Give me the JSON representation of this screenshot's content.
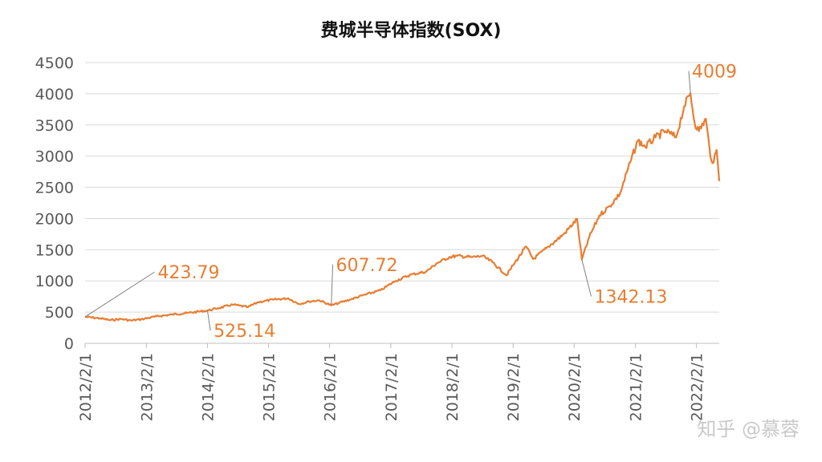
{
  "chart_data": {
    "type": "line",
    "title": "费城半导体指数(SOX)",
    "xlabel": "",
    "ylabel": "",
    "ylim": [
      0,
      4500
    ],
    "yticks": [
      0,
      500,
      1000,
      1500,
      2000,
      2500,
      3000,
      3500,
      4000,
      4500
    ],
    "xlim": [
      "2012-02-01",
      "2022-06-17"
    ],
    "xticks": [
      "2012/2/1",
      "2013/2/1",
      "2014/2/1",
      "2015/2/1",
      "2016/2/1",
      "2017/2/1",
      "2018/2/1",
      "2019/2/1",
      "2020/2/1",
      "2021/2/1",
      "2022/2/1"
    ],
    "grid": true,
    "series_color": "#E87D32",
    "series": [
      {
        "points": [
          [
            "2012-02-01",
            423.79
          ],
          [
            "2012-05-01",
            400
          ],
          [
            "2012-07-01",
            370
          ],
          [
            "2012-09-01",
            390
          ],
          [
            "2012-11-01",
            365
          ],
          [
            "2013-01-01",
            385
          ],
          [
            "2013-04-01",
            430
          ],
          [
            "2013-07-01",
            460
          ],
          [
            "2013-10-01",
            485
          ],
          [
            "2014-02-01",
            525.14
          ],
          [
            "2014-04-01",
            560
          ],
          [
            "2014-07-01",
            620
          ],
          [
            "2014-10-01",
            580
          ],
          [
            "2014-12-01",
            660
          ],
          [
            "2015-03-01",
            700
          ],
          [
            "2015-06-01",
            720
          ],
          [
            "2015-08-01",
            630
          ],
          [
            "2015-10-01",
            670
          ],
          [
            "2015-12-01",
            690
          ],
          [
            "2016-02-11",
            607.72
          ],
          [
            "2016-04-01",
            650
          ],
          [
            "2016-06-01",
            700
          ],
          [
            "2016-09-01",
            780
          ],
          [
            "2016-12-01",
            850
          ],
          [
            "2017-03-01",
            1000
          ],
          [
            "2017-06-01",
            1100
          ],
          [
            "2017-09-01",
            1150
          ],
          [
            "2017-11-01",
            1280
          ],
          [
            "2018-01-15",
            1380
          ],
          [
            "2018-03-01",
            1400
          ],
          [
            "2018-06-01",
            1380
          ],
          [
            "2018-08-01",
            1400
          ],
          [
            "2018-10-01",
            1300
          ],
          [
            "2018-12-24",
            1090
          ],
          [
            "2019-02-01",
            1250
          ],
          [
            "2019-04-20",
            1550
          ],
          [
            "2019-06-01",
            1350
          ],
          [
            "2019-09-01",
            1550
          ],
          [
            "2019-12-01",
            1750
          ],
          [
            "2020-02-19",
            1990
          ],
          [
            "2020-03-18",
            1342.13
          ],
          [
            "2020-05-01",
            1700
          ],
          [
            "2020-07-01",
            2050
          ],
          [
            "2020-09-01",
            2200
          ],
          [
            "2020-11-01",
            2400
          ],
          [
            "2021-01-01",
            2900
          ],
          [
            "2021-02-16",
            3250
          ],
          [
            "2021-04-01",
            3150
          ],
          [
            "2021-06-01",
            3300
          ],
          [
            "2021-08-01",
            3400
          ],
          [
            "2021-10-01",
            3300
          ],
          [
            "2021-11-20",
            3800
          ],
          [
            "2021-12-27",
            4009
          ],
          [
            "2022-01-20",
            3550
          ],
          [
            "2022-02-15",
            3400
          ],
          [
            "2022-03-29",
            3600
          ],
          [
            "2022-04-25",
            3000
          ],
          [
            "2022-05-15",
            2900
          ],
          [
            "2022-06-01",
            3100
          ],
          [
            "2022-06-17",
            2600
          ]
        ]
      }
    ],
    "annotations": [
      {
        "label": "423.79",
        "date": "2012-02-01",
        "value": 423.79,
        "text_date": "2013-04-10",
        "text_value": 1040,
        "anchor": "start"
      },
      {
        "label": "525.14",
        "date": "2014-02-01",
        "value": 525.14,
        "text_date": "2014-03-10",
        "text_value": 100,
        "anchor": "start"
      },
      {
        "label": "607.72",
        "date": "2016-02-11",
        "value": 607.72,
        "text_date": "2016-03-10",
        "text_value": 1160,
        "anchor": "start"
      },
      {
        "label": "1342.13",
        "date": "2020-03-18",
        "value": 1342.13,
        "text_date": "2020-06-01",
        "text_value": 650,
        "anchor": "start"
      },
      {
        "label": "4009",
        "date": "2021-12-27",
        "value": 4009,
        "text_date": "2022-01-05",
        "text_value": 4260,
        "anchor": "start"
      }
    ]
  },
  "watermark": "知乎 @慕蓉"
}
